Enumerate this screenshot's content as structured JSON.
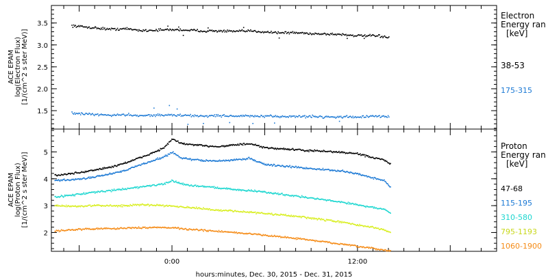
{
  "chart_data": [
    {
      "type": "scatter",
      "panel": "electron",
      "ylabel": [
        "ACE EPAM",
        "log(Electron Flux)",
        "[1/(cm^2 s ster MeV)]"
      ],
      "ylim": [
        1.08,
        3.9
      ],
      "yticks": [
        1.5,
        2.0,
        2.5,
        3.0,
        3.5
      ],
      "ytick_labels": [
        "1.5",
        "2.0",
        "2.5",
        "3.0",
        "3.5"
      ],
      "legend_title": [
        "Electron",
        "Energy ran",
        "[keV]"
      ],
      "legend_placement": "right",
      "series": [
        {
          "name": "38-53",
          "color": "#000000",
          "x": [
            -6.5,
            -5,
            -4,
            -3,
            -2,
            -1,
            0,
            1,
            2,
            3,
            4,
            5,
            6,
            7,
            8,
            9,
            10,
            11,
            12,
            13,
            14
          ],
          "values": [
            3.45,
            3.4,
            3.37,
            3.38,
            3.34,
            3.35,
            3.36,
            3.35,
            3.33,
            3.33,
            3.32,
            3.33,
            3.31,
            3.29,
            3.29,
            3.27,
            3.26,
            3.25,
            3.22,
            3.22,
            3.19
          ],
          "spread": 0.04,
          "spikes": [
            [
              -0.3,
              3.44
            ],
            [
              0.4,
              3.42
            ],
            [
              0.7,
              3.23
            ],
            [
              2.3,
              3.4
            ],
            [
              4.6,
              3.41
            ],
            [
              6.9,
              3.17
            ],
            [
              11.3,
              3.16
            ],
            [
              12.4,
              3.16
            ]
          ]
        },
        {
          "name": "175-315",
          "color": "#1a78d4",
          "x": [
            -6.5,
            -5,
            -4,
            -3,
            -2,
            -1,
            0,
            1,
            2,
            3,
            4,
            5,
            6,
            7,
            8,
            9,
            10,
            11,
            12,
            13,
            14
          ],
          "values": [
            1.45,
            1.42,
            1.41,
            1.42,
            1.4,
            1.41,
            1.41,
            1.4,
            1.39,
            1.4,
            1.39,
            1.39,
            1.38,
            1.38,
            1.38,
            1.38,
            1.37,
            1.37,
            1.37,
            1.38,
            1.38
          ],
          "spread": 0.04,
          "spikes": [
            [
              -1.2,
              1.57
            ],
            [
              -0.2,
              1.63
            ],
            [
              0.3,
              1.55
            ],
            [
              1.0,
              1.2
            ],
            [
              2.0,
              1.22
            ],
            [
              3.7,
              1.24
            ],
            [
              5.2,
              1.22
            ],
            [
              6.6,
              1.23
            ],
            [
              10.8,
              1.27
            ]
          ]
        }
      ]
    },
    {
      "type": "scatter",
      "panel": "proton",
      "ylabel": [
        "ACE EPAM",
        "log(Proton Flux)",
        "[1/(cm^2 s ster MeV)]"
      ],
      "ylim": [
        1.3,
        5.85
      ],
      "yticks": [
        2,
        3,
        4,
        5
      ],
      "ytick_labels": [
        "2",
        "3",
        "4",
        "5"
      ],
      "xlabel": "hours:minutes, Dec. 30, 2015 - Dec. 31, 2015",
      "xlim": [
        -7.8,
        21
      ],
      "xticks": [
        0,
        12
      ],
      "xtick_labels": [
        "0:00",
        "12:00"
      ],
      "legend_title": [
        "Proton",
        "Energy ran",
        "[keV]"
      ],
      "legend_placement": "right",
      "series": [
        {
          "name": "47-68",
          "color": "#000000",
          "x": [
            -7.6,
            -7,
            -6,
            -5,
            -4,
            -3,
            -2,
            -1,
            -0.5,
            0,
            0.5,
            1,
            2,
            3,
            4,
            5,
            6,
            7,
            8,
            9,
            10,
            11,
            12,
            13,
            13.7,
            14.1
          ],
          "values": [
            4.15,
            4.18,
            4.25,
            4.35,
            4.45,
            4.62,
            4.82,
            5.05,
            5.2,
            5.5,
            5.35,
            5.3,
            5.25,
            5.22,
            5.28,
            5.32,
            5.17,
            5.14,
            5.1,
            5.06,
            5.04,
            5.0,
            4.95,
            4.8,
            4.72,
            4.55
          ],
          "spread": 0.05
        },
        {
          "name": "115-195",
          "color": "#1a78d4",
          "x": [
            -7.6,
            -7,
            -6,
            -5,
            -4,
            -3,
            -2,
            -1,
            -0.5,
            0,
            0.5,
            1,
            2,
            3,
            4,
            5,
            6,
            7,
            8,
            9,
            10,
            11,
            12,
            13,
            13.7,
            14.1
          ],
          "values": [
            3.95,
            3.97,
            4.0,
            4.1,
            4.2,
            4.35,
            4.55,
            4.75,
            4.85,
            5.0,
            4.82,
            4.75,
            4.7,
            4.68,
            4.72,
            4.78,
            4.55,
            4.5,
            4.45,
            4.4,
            4.35,
            4.3,
            4.2,
            4.05,
            3.95,
            3.7
          ],
          "spread": 0.05
        },
        {
          "name": "310-580",
          "color": "#19d6cf",
          "x": [
            -7.6,
            -7,
            -6,
            -5,
            -4,
            -3,
            -2,
            -1,
            -0.5,
            0,
            0.5,
            1,
            2,
            3,
            4,
            5,
            6,
            7,
            8,
            9,
            10,
            11,
            12,
            13,
            13.7,
            14.1
          ],
          "values": [
            3.35,
            3.38,
            3.45,
            3.52,
            3.58,
            3.65,
            3.72,
            3.8,
            3.82,
            3.95,
            3.85,
            3.78,
            3.74,
            3.68,
            3.62,
            3.58,
            3.52,
            3.45,
            3.38,
            3.3,
            3.22,
            3.15,
            3.05,
            2.95,
            2.88,
            2.75
          ],
          "spread": 0.05
        },
        {
          "name": "795-1193",
          "color": "#d8ee1e",
          "x": [
            -7.6,
            -7,
            -6,
            -5,
            -4,
            -3,
            -2,
            -1,
            -0.5,
            0,
            0.5,
            1,
            2,
            3,
            4,
            5,
            6,
            7,
            8,
            9,
            10,
            11,
            12,
            13,
            13.7,
            14.1
          ],
          "values": [
            3.02,
            3.0,
            3.0,
            3.02,
            3.02,
            3.02,
            3.05,
            3.04,
            3.02,
            3.02,
            2.98,
            2.95,
            2.9,
            2.85,
            2.82,
            2.78,
            2.72,
            2.68,
            2.62,
            2.55,
            2.48,
            2.4,
            2.3,
            2.2,
            2.12,
            2.02
          ],
          "spread": 0.05
        },
        {
          "name": "1060-1900",
          "color": "#f58a14",
          "x": [
            -7.6,
            -7,
            -6,
            -5,
            -4,
            -3,
            -2,
            -1,
            -0.5,
            0,
            0.5,
            1,
            2,
            3,
            4,
            5,
            6,
            7,
            8,
            9,
            10,
            11,
            12,
            13,
            13.7,
            14.1
          ],
          "values": [
            2.08,
            2.1,
            2.14,
            2.16,
            2.17,
            2.18,
            2.2,
            2.22,
            2.2,
            2.2,
            2.17,
            2.14,
            2.1,
            2.06,
            2.02,
            1.97,
            1.92,
            1.86,
            1.8,
            1.73,
            1.66,
            1.58,
            1.5,
            1.42,
            1.37,
            1.33
          ],
          "spread": 0.045
        }
      ]
    }
  ]
}
